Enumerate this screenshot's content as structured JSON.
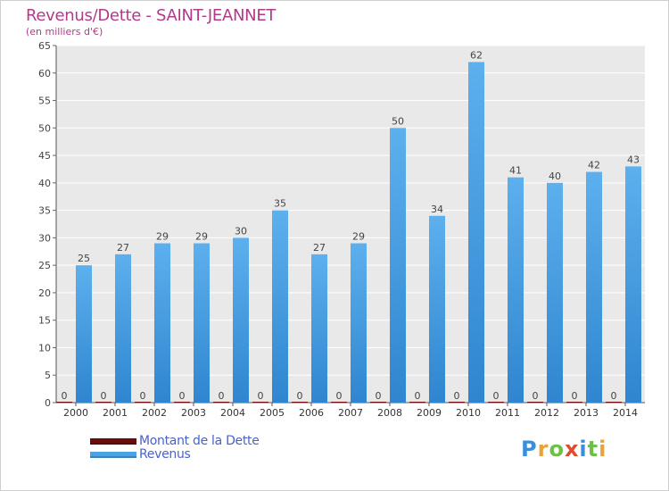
{
  "header": {
    "title": "Revenus/Dette - SAINT-JEANNET",
    "subtitle": "(en milliers d'€)"
  },
  "legend": {
    "items": [
      {
        "label": "Montant de la Dette",
        "color": "#6b0d0d"
      },
      {
        "label": "Revenus",
        "color": "#4da2e3"
      }
    ]
  },
  "logo": {
    "letters": [
      "P",
      "r",
      "o",
      "x",
      "i",
      "t",
      "i"
    ],
    "colors": [
      "#3a8fd8",
      "#e8a33a",
      "#6cc04a",
      "#e3492f",
      "#3a8fd8",
      "#6cc04a",
      "#e8a33a"
    ]
  },
  "chart_data": {
    "type": "bar",
    "categories": [
      "2000",
      "2001",
      "2002",
      "2003",
      "2004",
      "2005",
      "2006",
      "2007",
      "2008",
      "2009",
      "2010",
      "2011",
      "2012",
      "2013",
      "2014"
    ],
    "series": [
      {
        "name": "Montant de la Dette",
        "color": "#6b0d0d",
        "values": [
          0,
          0,
          0,
          0,
          0,
          0,
          0,
          0,
          0,
          0,
          0,
          0,
          0,
          0,
          0
        ]
      },
      {
        "name": "Revenus",
        "color": "#4da2e3",
        "values": [
          25,
          27,
          29,
          29,
          30,
          35,
          27,
          29,
          50,
          34,
          62,
          41,
          40,
          42,
          43
        ]
      }
    ],
    "title": "Revenus/Dette - SAINT-JEANNET",
    "subtitle": "(en milliers d'€)",
    "ylim": [
      0,
      65
    ],
    "yticks": [
      0,
      5,
      10,
      15,
      20,
      25,
      30,
      35,
      40,
      45,
      50,
      55,
      60,
      65
    ],
    "grid": true,
    "legend_position": "bottom-left",
    "plot_background": "#e9e9e9"
  }
}
